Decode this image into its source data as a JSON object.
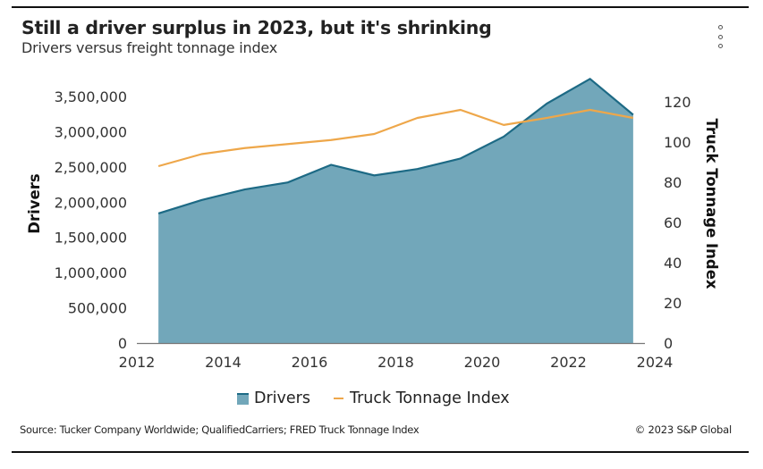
{
  "header": {
    "title": "Still a driver surplus in 2023, but it's shrinking",
    "subtitle": "Drivers versus freight tonnage index",
    "menu_icon": "more-vertical-icon"
  },
  "footer": {
    "source": "Source: Tucker Company Worldwide; QualifiedCarriers; FRED Truck Tonnage Index",
    "copyright": "© 2023 S&P Global"
  },
  "colors": {
    "drivers_fill": "#72a7ba",
    "drivers_line": "#1d6a85",
    "tonnage_line": "#eea74a",
    "axis": "#777777"
  },
  "chart_data": {
    "type": "area",
    "title": "Still a driver surplus in 2023, but it's shrinking",
    "subtitle": "Drivers versus freight tonnage index",
    "xlabel": "",
    "ylabel": "Drivers",
    "y2label": "Truck Tonnage Index",
    "x": [
      2012,
      2013,
      2014,
      2015,
      2016,
      2017,
      2018,
      2019,
      2020,
      2021,
      2022,
      2023
    ],
    "xlim": [
      2012,
      2024
    ],
    "x_ticks": [
      "2012",
      "2014",
      "2016",
      "2018",
      "2020",
      "2022",
      "2024"
    ],
    "x_tick_values": [
      2012,
      2014,
      2016,
      2018,
      2020,
      2022,
      2024
    ],
    "ylim": [
      0,
      3500000
    ],
    "y_ticks": [
      "0",
      "500,000",
      "1,000,000",
      "1,500,000",
      "2,000,000",
      "2,500,000",
      "3,000,000",
      "3,500,000"
    ],
    "y_tick_values": [
      0,
      500000,
      1000000,
      1500000,
      2000000,
      2500000,
      3000000,
      3500000
    ],
    "y2lim": [
      0,
      120
    ],
    "y2_ticks": [
      "0",
      "20",
      "40",
      "60",
      "80",
      "100",
      "120"
    ],
    "y2_tick_values": [
      0,
      20,
      40,
      60,
      80,
      100,
      120
    ],
    "grid": false,
    "legend_position": "bottom",
    "series": [
      {
        "name": "Drivers",
        "type": "area",
        "axis": "left",
        "values": [
          1840000,
          2030000,
          2180000,
          2280000,
          2530000,
          2380000,
          2470000,
          2620000,
          2930000,
          3400000,
          3750000,
          3240000
        ]
      },
      {
        "name": "Truck Tonnage Index",
        "type": "line",
        "axis": "right",
        "values": [
          88,
          94,
          97,
          99,
          101,
          104,
          112,
          116,
          108.5,
          112,
          116,
          112
        ]
      }
    ]
  }
}
